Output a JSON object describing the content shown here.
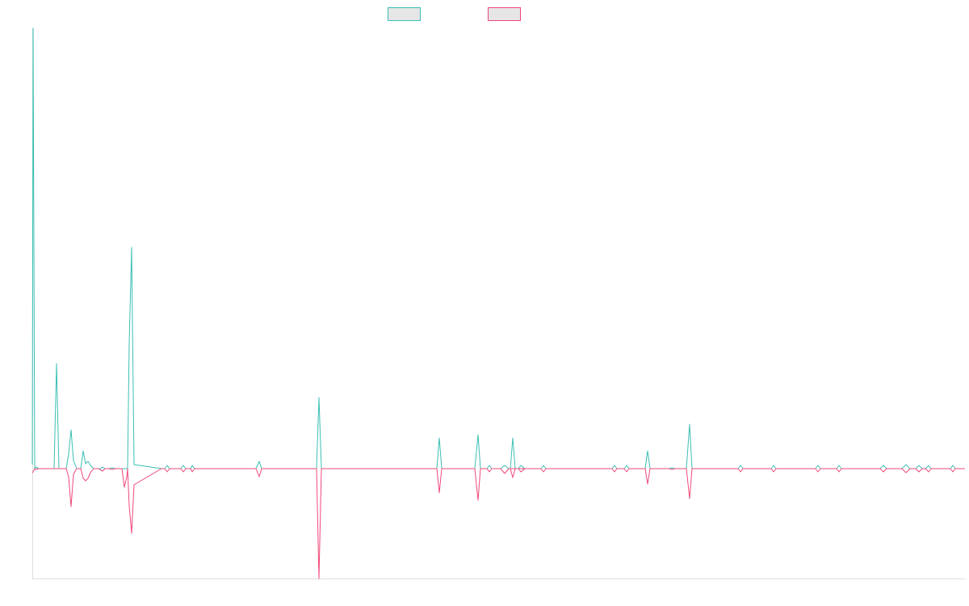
{
  "colors": {
    "series_a": "#3cbfb4",
    "series_b": "#f0487a",
    "axis": "#dddddd"
  },
  "chart_data": {
    "type": "line",
    "title": "",
    "xlabel": "",
    "ylabel": "",
    "grid": false,
    "legend": "top-center",
    "xlim": [
      0,
      1155
    ],
    "ylim": [
      -136,
      545
    ],
    "series": [
      {
        "color": "#3cbfb4",
        "points": [
          [
            0,
            5
          ],
          [
            1,
            545
          ],
          [
            3,
            0
          ],
          [
            5,
            2
          ],
          [
            8,
            0
          ],
          [
            27,
            0
          ],
          [
            30,
            130
          ],
          [
            33,
            0
          ],
          [
            42,
            0
          ],
          [
            45,
            18
          ],
          [
            48,
            48
          ],
          [
            51,
            10
          ],
          [
            55,
            0
          ],
          [
            60,
            0
          ],
          [
            63,
            22
          ],
          [
            66,
            6
          ],
          [
            69,
            9
          ],
          [
            72,
            4
          ],
          [
            76,
            0
          ],
          [
            82,
            0
          ],
          [
            85,
            0
          ],
          [
            87,
            2
          ],
          [
            90,
            0
          ],
          [
            95,
            0
          ],
          [
            99,
            1
          ],
          [
            103,
            0
          ],
          [
            118,
            0
          ],
          [
            120,
            155
          ],
          [
            123,
            274
          ],
          [
            126,
            5
          ],
          [
            160,
            0
          ],
          [
            164,
            0
          ],
          [
            167,
            4
          ],
          [
            170,
            0
          ],
          [
            180,
            0
          ],
          [
            184,
            0
          ],
          [
            187,
            4
          ],
          [
            190,
            0
          ],
          [
            193,
            0
          ],
          [
            196,
            0
          ],
          [
            198,
            4
          ],
          [
            201,
            0
          ],
          [
            277,
            0
          ],
          [
            281,
            9
          ],
          [
            284,
            0
          ],
          [
            352,
            0
          ],
          [
            355,
            88
          ],
          [
            358,
            0
          ],
          [
            501,
            0
          ],
          [
            504,
            38
          ],
          [
            507,
            0
          ],
          [
            548,
            0
          ],
          [
            552,
            42
          ],
          [
            555,
            0
          ],
          [
            563,
            0
          ],
          [
            566,
            4
          ],
          [
            569,
            0
          ],
          [
            580,
            0
          ],
          [
            585,
            4
          ],
          [
            590,
            0
          ],
          [
            602,
            0
          ],
          [
            605,
            4
          ],
          [
            610,
            0
          ],
          [
            592,
            0
          ],
          [
            595,
            38
          ],
          [
            598,
            0
          ],
          [
            630,
            0
          ],
          [
            633,
            4
          ],
          [
            636,
            0
          ],
          [
            718,
            0
          ],
          [
            721,
            4
          ],
          [
            724,
            0
          ],
          [
            733,
            0
          ],
          [
            736,
            4
          ],
          [
            739,
            0
          ],
          [
            759,
            0
          ],
          [
            762,
            22
          ],
          [
            765,
            0
          ],
          [
            788,
            0
          ],
          [
            792,
            1
          ],
          [
            796,
            0
          ],
          [
            810,
            0
          ],
          [
            814,
            55
          ],
          [
            817,
            0
          ],
          [
            874,
            0
          ],
          [
            877,
            4
          ],
          [
            880,
            0
          ],
          [
            915,
            0
          ],
          [
            918,
            4
          ],
          [
            921,
            0
          ],
          [
            970,
            0
          ],
          [
            973,
            4
          ],
          [
            976,
            0
          ],
          [
            996,
            0
          ],
          [
            999,
            4
          ],
          [
            1002,
            0
          ],
          [
            1050,
            0
          ],
          [
            1054,
            4
          ],
          [
            1058,
            0
          ],
          [
            1077,
            0
          ],
          [
            1082,
            5
          ],
          [
            1087,
            0
          ],
          [
            1094,
            0
          ],
          [
            1098,
            4
          ],
          [
            1102,
            0
          ],
          [
            1106,
            0
          ],
          [
            1110,
            4
          ],
          [
            1113,
            0
          ],
          [
            1137,
            0
          ],
          [
            1140,
            4
          ],
          [
            1143,
            0
          ],
          [
            1155,
            0
          ]
        ]
      },
      {
        "color": "#f0487a",
        "points": [
          [
            0,
            -5
          ],
          [
            1,
            -4
          ],
          [
            3,
            0
          ],
          [
            5,
            -1
          ],
          [
            8,
            0
          ],
          [
            27,
            0
          ],
          [
            30,
            0
          ],
          [
            33,
            0
          ],
          [
            42,
            0
          ],
          [
            45,
            -10
          ],
          [
            48,
            -47
          ],
          [
            51,
            -7
          ],
          [
            55,
            0
          ],
          [
            60,
            0
          ],
          [
            63,
            -12
          ],
          [
            66,
            -15
          ],
          [
            69,
            -12
          ],
          [
            72,
            -5
          ],
          [
            76,
            0
          ],
          [
            82,
            0
          ],
          [
            85,
            -2
          ],
          [
            87,
            -3
          ],
          [
            90,
            0
          ],
          [
            95,
            0
          ],
          [
            99,
            -1
          ],
          [
            103,
            0
          ],
          [
            111,
            0
          ],
          [
            114,
            -23
          ],
          [
            117,
            -10
          ],
          [
            118,
            0
          ],
          [
            120,
            -46
          ],
          [
            123,
            -80
          ],
          [
            126,
            -20
          ],
          [
            160,
            0
          ],
          [
            164,
            0
          ],
          [
            167,
            -4
          ],
          [
            170,
            0
          ],
          [
            180,
            0
          ],
          [
            184,
            0
          ],
          [
            187,
            -4
          ],
          [
            190,
            0
          ],
          [
            193,
            0
          ],
          [
            196,
            0
          ],
          [
            198,
            -4
          ],
          [
            201,
            0
          ],
          [
            277,
            0
          ],
          [
            281,
            -10
          ],
          [
            284,
            0
          ],
          [
            352,
            0
          ],
          [
            355,
            -136
          ],
          [
            358,
            0
          ],
          [
            501,
            0
          ],
          [
            504,
            -30
          ],
          [
            507,
            0
          ],
          [
            548,
            0
          ],
          [
            552,
            -39
          ],
          [
            555,
            0
          ],
          [
            563,
            0
          ],
          [
            566,
            -4
          ],
          [
            569,
            0
          ],
          [
            580,
            0
          ],
          [
            585,
            -6
          ],
          [
            590,
            0
          ],
          [
            602,
            0
          ],
          [
            605,
            -4
          ],
          [
            610,
            0
          ],
          [
            592,
            0
          ],
          [
            595,
            -11
          ],
          [
            598,
            0
          ],
          [
            630,
            0
          ],
          [
            633,
            -4
          ],
          [
            636,
            0
          ],
          [
            718,
            0
          ],
          [
            721,
            -4
          ],
          [
            724,
            0
          ],
          [
            733,
            0
          ],
          [
            736,
            -4
          ],
          [
            739,
            0
          ],
          [
            759,
            0
          ],
          [
            762,
            -19
          ],
          [
            765,
            0
          ],
          [
            788,
            0
          ],
          [
            792,
            -1
          ],
          [
            796,
            0
          ],
          [
            810,
            0
          ],
          [
            814,
            -37
          ],
          [
            817,
            0
          ],
          [
            874,
            0
          ],
          [
            877,
            -4
          ],
          [
            880,
            0
          ],
          [
            915,
            0
          ],
          [
            918,
            -4
          ],
          [
            921,
            0
          ],
          [
            970,
            0
          ],
          [
            973,
            -4
          ],
          [
            976,
            0
          ],
          [
            996,
            0
          ],
          [
            999,
            -4
          ],
          [
            1002,
            0
          ],
          [
            1050,
            0
          ],
          [
            1054,
            -4
          ],
          [
            1058,
            0
          ],
          [
            1077,
            0
          ],
          [
            1082,
            -5
          ],
          [
            1087,
            0
          ],
          [
            1094,
            0
          ],
          [
            1098,
            -4
          ],
          [
            1102,
            0
          ],
          [
            1106,
            0
          ],
          [
            1110,
            -4
          ],
          [
            1113,
            0
          ],
          [
            1137,
            0
          ],
          [
            1140,
            -4
          ],
          [
            1143,
            0
          ],
          [
            1155,
            0
          ]
        ]
      }
    ]
  }
}
